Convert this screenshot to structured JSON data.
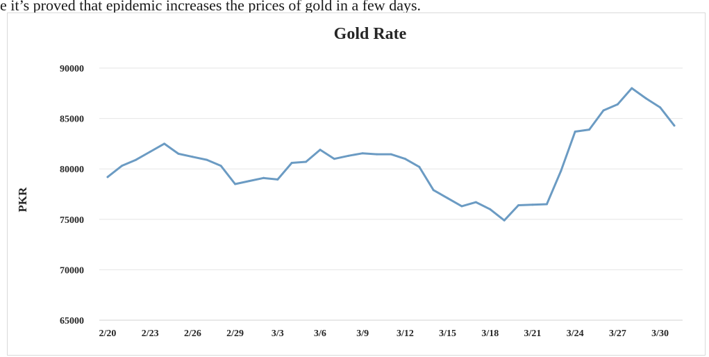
{
  "page": {
    "top_text": "e it’s proved that epidemic increases the prices of gold in a few days."
  },
  "chart_data": {
    "type": "line",
    "title": "Gold Rate",
    "xlabel": "",
    "ylabel": "PKR",
    "ylim": [
      65000,
      90000
    ],
    "yticks": [
      65000,
      70000,
      75000,
      80000,
      85000,
      90000
    ],
    "grid": true,
    "legend": "none",
    "x_tick_labels": [
      "2/20",
      "2/23",
      "2/26",
      "2/29",
      "3/3",
      "3/6",
      "3/9",
      "3/12",
      "3/15",
      "3/18",
      "3/21",
      "3/24",
      "3/27",
      "3/30"
    ],
    "x": [
      "2/20",
      "2/21",
      "2/22",
      "2/23",
      "2/24",
      "2/25",
      "2/26",
      "2/27",
      "2/28",
      "2/29",
      "3/1",
      "3/2",
      "3/3",
      "3/4",
      "3/5",
      "3/6",
      "3/7",
      "3/8",
      "3/9",
      "3/10",
      "3/11",
      "3/12",
      "3/13",
      "3/14",
      "3/15",
      "3/16",
      "3/17",
      "3/18",
      "3/19",
      "3/20",
      "3/21",
      "3/22",
      "3/23",
      "3/24",
      "3/25",
      "3/26",
      "3/27",
      "3/28",
      "3/29",
      "3/30",
      "3/31"
    ],
    "series": [
      {
        "color": "#6b9bc3",
        "values": [
          79200,
          80300,
          80900,
          81700,
          82500,
          81500,
          81200,
          80900,
          80300,
          78500,
          78800,
          79100,
          78950,
          80600,
          80700,
          81900,
          81000,
          81300,
          81550,
          81450,
          81450,
          81000,
          80200,
          77900,
          77100,
          76300,
          76700,
          76000,
          74900,
          76400,
          76450,
          76500,
          79800,
          83700,
          83900,
          85800,
          86400,
          88000,
          87000,
          86100,
          84300
        ]
      }
    ]
  }
}
